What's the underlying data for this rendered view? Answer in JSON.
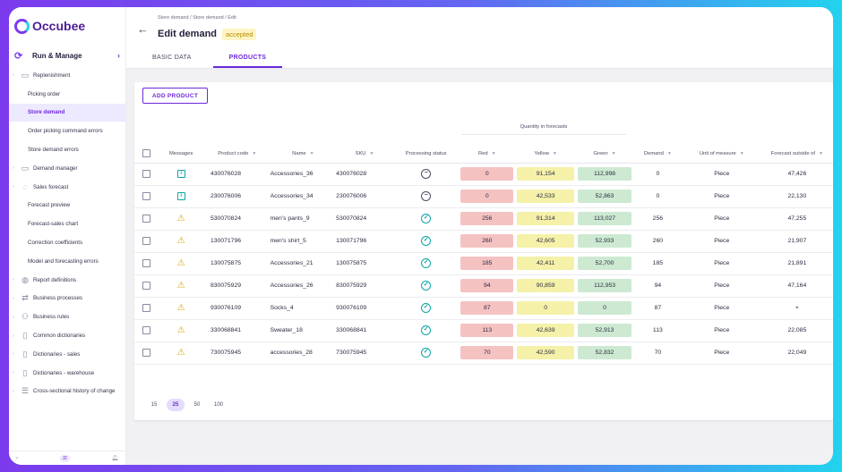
{
  "brand": {
    "name": "Occubee",
    "subtitle": ""
  },
  "sidebar": {
    "section": "Run & Manage",
    "items": [
      {
        "label": "Replenishment",
        "type": "top",
        "icon": "briefcase-icon"
      },
      {
        "label": "Picking order",
        "type": "sub"
      },
      {
        "label": "Store demand",
        "type": "sub",
        "active": true
      },
      {
        "label": "Order picking command errors",
        "type": "sub"
      },
      {
        "label": "Store demand errors",
        "type": "sub"
      },
      {
        "label": "Demand manager",
        "type": "top",
        "icon": "briefcase-icon"
      },
      {
        "label": "Sales forecast",
        "type": "top",
        "icon": "lightbulb-icon"
      },
      {
        "label": "Forecast preview",
        "type": "sub"
      },
      {
        "label": "Forecast-sales chart",
        "type": "sub"
      },
      {
        "label": "Correction coefficients",
        "type": "sub"
      },
      {
        "label": "Model and forecasting errors",
        "type": "sub"
      },
      {
        "label": "Report definitions",
        "type": "top",
        "icon": "globe-icon"
      },
      {
        "label": "Business processes",
        "type": "top",
        "icon": "arrows-icon"
      },
      {
        "label": "Business rules",
        "type": "top",
        "icon": "users-icon"
      },
      {
        "label": "Common dictionaries",
        "type": "top",
        "icon": "book-icon"
      },
      {
        "label": "Dictionaries - sales",
        "type": "top",
        "icon": "book-icon"
      },
      {
        "label": "Dictionaries - warehouse",
        "type": "top",
        "icon": "book-icon"
      },
      {
        "label": "Cross-sectional history of change",
        "type": "top",
        "icon": "document-icon"
      }
    ],
    "bottom_badge": "J2"
  },
  "header": {
    "breadcrumb": "Store demand / Store demand / Edit",
    "title": "Edit demand",
    "status": "accepted",
    "tabs": [
      "BASIC DATA",
      "PRODUCTS"
    ]
  },
  "toolbar": {
    "add_product": "ADD PRODUCT"
  },
  "table": {
    "group_header": "Quantity in forecasts",
    "columns": [
      "Messages",
      "Product code",
      "Name",
      "SKU",
      "Processing status",
      "Red",
      "Yellow",
      "Green",
      "Demand",
      "Unit of measure",
      "Forecast outside of"
    ],
    "rows": [
      {
        "msg": "info",
        "code": "430076028",
        "name": "Accessories_36",
        "sku": "430076028",
        "status": "minus",
        "red": "0",
        "yellow": "91,154",
        "green": "112,998",
        "demand": "0",
        "unit": "Piece",
        "outside": "47,426"
      },
      {
        "msg": "info",
        "code": "230076006",
        "name": "Accessories_34",
        "sku": "230076006",
        "status": "minus",
        "red": "0",
        "yellow": "42,533",
        "green": "52,863",
        "demand": "0",
        "unit": "Piece",
        "outside": "22,130"
      },
      {
        "msg": "warn",
        "code": "530070824",
        "name": "men's pants_9",
        "sku": "530070824",
        "status": "ok",
        "red": "256",
        "yellow": "91,314",
        "green": "113,027",
        "demand": "256",
        "unit": "Piece",
        "outside": "47,255"
      },
      {
        "msg": "warn",
        "code": "130071796",
        "name": "men's shirt_5",
        "sku": "130071796",
        "status": "ok",
        "red": "260",
        "yellow": "42,605",
        "green": "52,933",
        "demand": "260",
        "unit": "Piece",
        "outside": "21,907"
      },
      {
        "msg": "warn",
        "code": "130075875",
        "name": "Accessories_21",
        "sku": "130075875",
        "status": "ok",
        "red": "185",
        "yellow": "42,411",
        "green": "52,700",
        "demand": "185",
        "unit": "Piece",
        "outside": "21,891"
      },
      {
        "msg": "warn",
        "code": "830075929",
        "name": "Accessories_26",
        "sku": "830075929",
        "status": "ok",
        "red": "94",
        "yellow": "90,859",
        "green": "112,953",
        "demand": "94",
        "unit": "Piece",
        "outside": "47,164"
      },
      {
        "msg": "warn",
        "code": "930076109",
        "name": "Socks_4",
        "sku": "930076109",
        "status": "ok",
        "red": "87",
        "yellow": "0",
        "green": "0",
        "demand": "87",
        "unit": "Piece",
        "outside": "×"
      },
      {
        "msg": "warn",
        "code": "330068841",
        "name": "Sweater_18",
        "sku": "330068841",
        "status": "ok",
        "red": "113",
        "yellow": "42,639",
        "green": "52,913",
        "demand": "113",
        "unit": "Piece",
        "outside": "22,085"
      },
      {
        "msg": "warn",
        "code": "730075945",
        "name": "accessories_28",
        "sku": "730075945",
        "status": "ok",
        "red": "70",
        "yellow": "42,590",
        "green": "52,832",
        "demand": "70",
        "unit": "Piece",
        "outside": "22,049"
      }
    ]
  },
  "pager": {
    "options": [
      "15",
      "25",
      "50",
      "100"
    ],
    "selected": "25"
  }
}
